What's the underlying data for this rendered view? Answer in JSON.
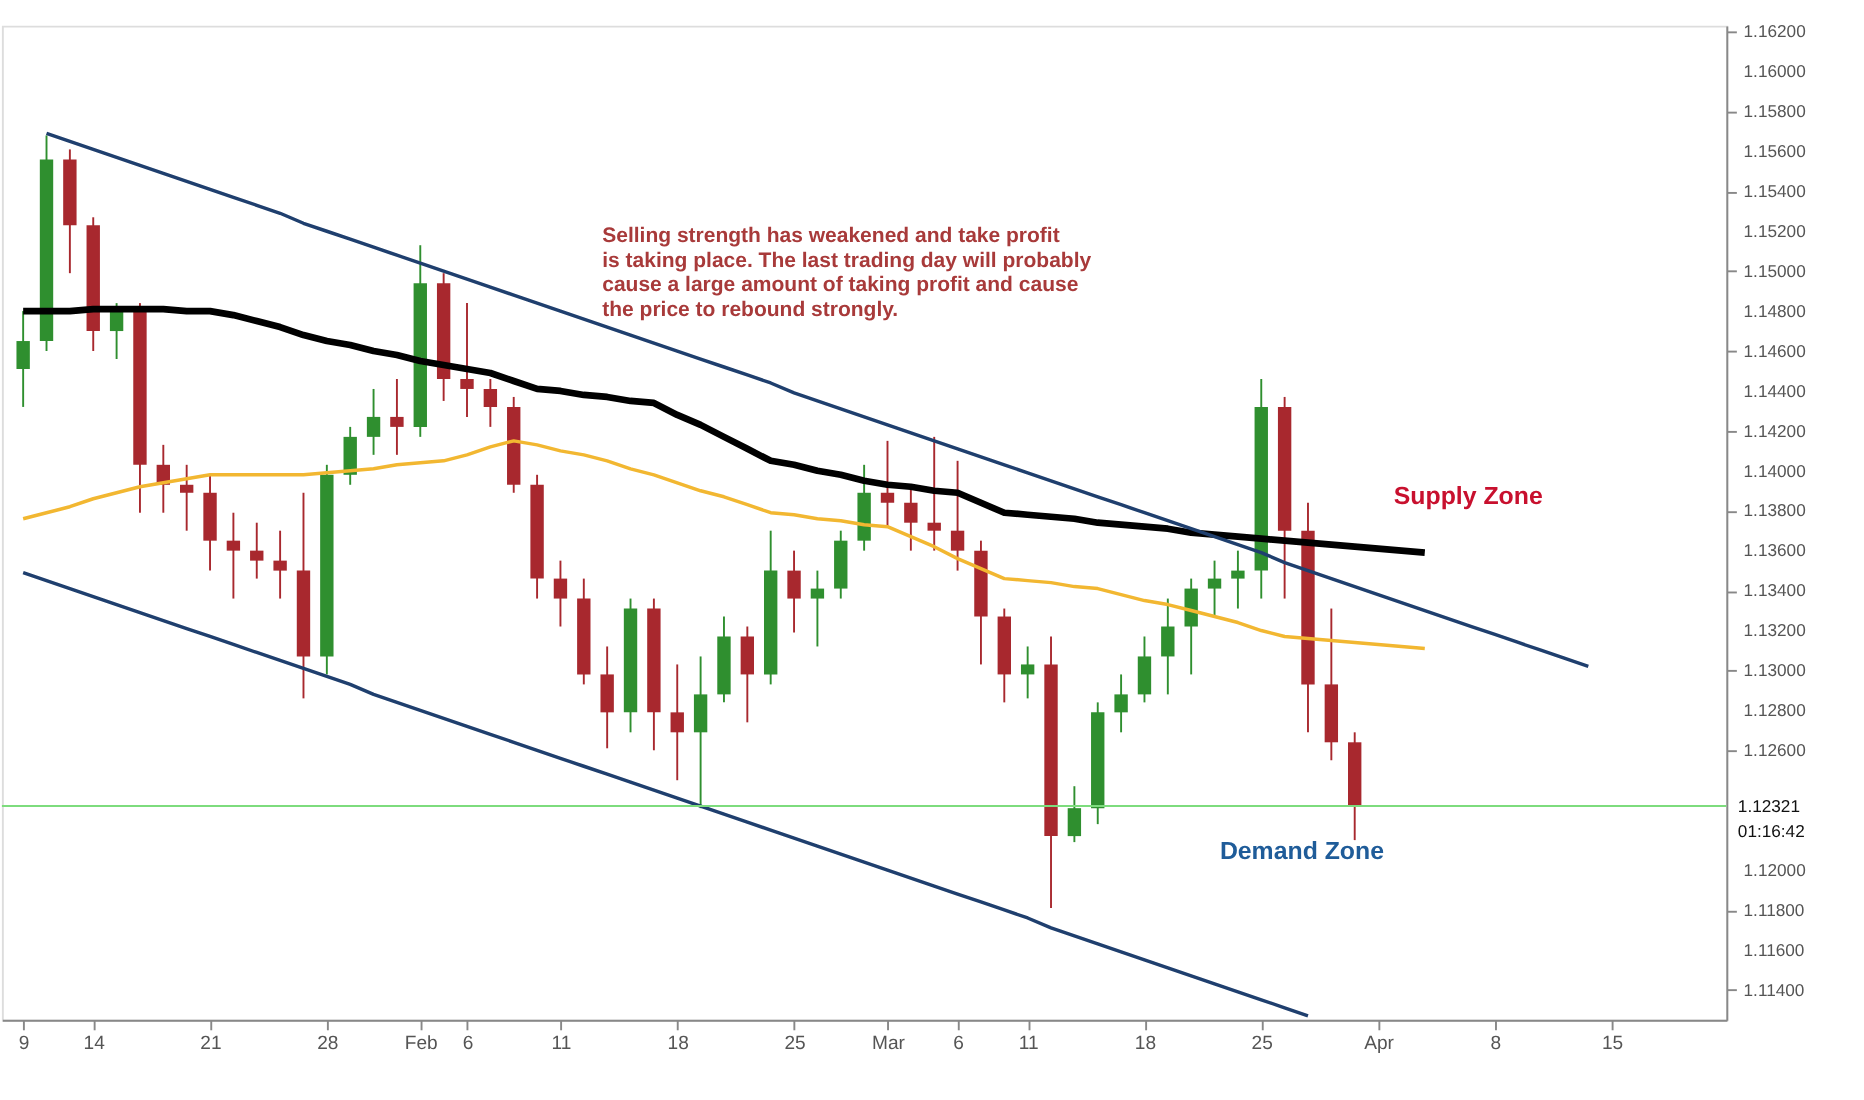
{
  "chart_data": {
    "type": "candlestick",
    "categories": [
      "9",
      null,
      null,
      "14",
      null,
      null,
      null,
      null,
      "21",
      null,
      null,
      null,
      null,
      "28",
      null,
      null,
      null,
      "Feb",
      null,
      "6",
      null,
      null,
      null,
      "11",
      null,
      null,
      null,
      null,
      "18",
      null,
      null,
      null,
      null,
      "25",
      null,
      null,
      null,
      "Mar",
      null,
      null,
      "6",
      null,
      null,
      "11",
      null,
      null,
      null,
      null,
      "18",
      null,
      null,
      null,
      null,
      "25",
      null,
      null,
      null,
      null,
      "Apr",
      null,
      null,
      null,
      null,
      "8",
      null,
      null,
      null,
      null,
      "15",
      null,
      null,
      null,
      null
    ],
    "ohlc": [
      [
        1.1451,
        1.148,
        1.1432,
        1.1465
      ],
      [
        1.1465,
        1.1568,
        1.146,
        1.1556
      ],
      [
        1.1556,
        1.1561,
        1.1499,
        1.1523
      ],
      [
        1.1523,
        1.1527,
        1.146,
        1.147
      ],
      [
        1.147,
        1.1484,
        1.1456,
        1.148
      ],
      [
        1.148,
        1.1484,
        1.1379,
        1.1403
      ],
      [
        1.1403,
        1.1413,
        1.1379,
        1.1393
      ],
      [
        1.1393,
        1.1403,
        1.137,
        1.1389
      ],
      [
        1.1389,
        1.1398,
        1.135,
        1.1365
      ],
      [
        1.1365,
        1.1379,
        1.1336,
        1.136
      ],
      [
        1.136,
        1.1374,
        1.1346,
        1.1355
      ],
      [
        1.1355,
        1.137,
        1.1336,
        1.135
      ],
      [
        1.135,
        1.1389,
        1.1286,
        1.1307
      ],
      [
        1.1307,
        1.1403,
        1.1298,
        1.1398
      ],
      [
        1.1398,
        1.1422,
        1.1393,
        1.1417
      ],
      [
        1.1417,
        1.1441,
        1.1408,
        1.1427
      ],
      [
        1.1427,
        1.1446,
        1.1408,
        1.1422
      ],
      [
        1.1422,
        1.1513,
        1.1417,
        1.1494
      ],
      [
        1.1494,
        1.1499,
        1.1435,
        1.1446
      ],
      [
        1.1446,
        1.1484,
        1.1427,
        1.1441
      ],
      [
        1.1441,
        1.1446,
        1.1422,
        1.1432
      ],
      [
        1.1432,
        1.1437,
        1.1389,
        1.1393
      ],
      [
        1.1393,
        1.1398,
        1.1336,
        1.1346
      ],
      [
        1.1346,
        1.1355,
        1.1322,
        1.1336
      ],
      [
        1.1336,
        1.1346,
        1.1293,
        1.1298
      ],
      [
        1.1298,
        1.1312,
        1.1261,
        1.1279
      ],
      [
        1.1279,
        1.1336,
        1.1269,
        1.1331
      ],
      [
        1.1331,
        1.1336,
        1.126,
        1.1279
      ],
      [
        1.1279,
        1.1303,
        1.1245,
        1.1269
      ],
      [
        1.1269,
        1.1307,
        1.1231,
        1.1288
      ],
      [
        1.1288,
        1.1327,
        1.1284,
        1.1317
      ],
      [
        1.1317,
        1.1322,
        1.1274,
        1.1298
      ],
      [
        1.1298,
        1.137,
        1.1293,
        1.135
      ],
      [
        1.135,
        1.136,
        1.1319,
        1.1336
      ],
      [
        1.1336,
        1.135,
        1.1312,
        1.1341
      ],
      [
        1.1341,
        1.137,
        1.1336,
        1.1365
      ],
      [
        1.1365,
        1.1403,
        1.136,
        1.1389
      ],
      [
        1.1389,
        1.1415,
        1.1372,
        1.1384
      ],
      [
        1.1384,
        1.1393,
        1.136,
        1.1374
      ],
      [
        1.1374,
        1.1417,
        1.136,
        1.137
      ],
      [
        1.137,
        1.1405,
        1.135,
        1.136
      ],
      [
        1.136,
        1.1365,
        1.1303,
        1.1327
      ],
      [
        1.1327,
        1.1331,
        1.1284,
        1.1298
      ],
      [
        1.1298,
        1.1312,
        1.1286,
        1.1303
      ],
      [
        1.1303,
        1.1317,
        1.1181,
        1.1217
      ],
      [
        1.1217,
        1.1242,
        1.1214,
        1.1231
      ],
      [
        1.1231,
        1.1284,
        1.1223,
        1.1279
      ],
      [
        1.1279,
        1.1298,
        1.1269,
        1.1288
      ],
      [
        1.1288,
        1.1317,
        1.1284,
        1.1307
      ],
      [
        1.1307,
        1.1336,
        1.1288,
        1.1322
      ],
      [
        1.1322,
        1.1346,
        1.1298,
        1.1341
      ],
      [
        1.1341,
        1.1355,
        1.1327,
        1.1346
      ],
      [
        1.1346,
        1.136,
        1.1331,
        1.135
      ],
      [
        1.135,
        1.1446,
        1.1336,
        1.1432
      ],
      [
        1.1432,
        1.1437,
        1.1336,
        1.137
      ],
      [
        1.137,
        1.1384,
        1.1269,
        1.1293
      ],
      [
        1.1293,
        1.1331,
        1.1255,
        1.1264
      ],
      [
        1.1264,
        1.1269,
        1.1215,
        1.12321
      ],
      null,
      null,
      null,
      null,
      null,
      null,
      null,
      null,
      null,
      null,
      null,
      null,
      null,
      null,
      null
    ],
    "series": [
      {
        "type": "line",
        "color": "#000000",
        "values": [
          1.148,
          1.148,
          1.148,
          1.1481,
          1.1481,
          1.1481,
          1.1481,
          1.148,
          1.148,
          1.1478,
          1.1475,
          1.1472,
          1.1468,
          1.1465,
          1.1463,
          1.146,
          1.1458,
          1.1455,
          1.1453,
          1.1451,
          1.1449,
          1.1445,
          1.1441,
          1.144,
          1.1438,
          1.1437,
          1.1435,
          1.1434,
          1.1428,
          1.1423,
          1.1417,
          1.1411,
          1.1405,
          1.1403,
          1.14,
          1.1398,
          1.1395,
          1.1393,
          1.1392,
          1.139,
          1.1389,
          1.1384,
          1.1379,
          1.1378,
          1.1377,
          1.1376,
          1.1374,
          1.1373,
          1.1372,
          1.1371,
          1.1369,
          1.1368,
          1.1367,
          1.1366,
          1.1365,
          1.1364,
          1.1363,
          1.1362,
          1.1361,
          1.136,
          1.1359,
          null,
          null,
          null,
          null,
          null,
          null,
          null,
          null,
          null,
          null,
          null,
          null
        ]
      },
      {
        "type": "line",
        "color": "#f2b731",
        "values": [
          1.1376,
          1.1379,
          1.1382,
          1.1386,
          1.1389,
          1.1392,
          1.1394,
          1.1396,
          1.1398,
          1.1398,
          1.1398,
          1.1398,
          1.1398,
          1.1399,
          1.14,
          1.1401,
          1.1403,
          1.1404,
          1.1405,
          1.1408,
          1.1412,
          1.1415,
          1.1413,
          1.141,
          1.1408,
          1.1405,
          1.1401,
          1.1398,
          1.1394,
          1.139,
          1.1387,
          1.1383,
          1.1379,
          1.1378,
          1.1376,
          1.1375,
          1.1373,
          1.1372,
          1.1367,
          1.1362,
          1.1356,
          1.1351,
          1.1346,
          1.1345,
          1.1344,
          1.1342,
          1.1341,
          1.1338,
          1.1335,
          1.1333,
          1.133,
          1.1327,
          1.1324,
          1.132,
          1.1317,
          1.1316,
          1.1315,
          1.1314,
          1.1313,
          1.1312,
          1.1311,
          null,
          null,
          null,
          null,
          null,
          null,
          null,
          null,
          null,
          null,
          null,
          null
        ]
      },
      {
        "type": "line",
        "color": "#1f3f6e",
        "values": [
          null,
          1.1569,
          1.1565,
          1.1561,
          1.1557,
          1.1553,
          1.1549,
          1.1545,
          1.1541,
          1.1537,
          1.1533,
          1.1529,
          1.1524,
          1.152,
          1.1516,
          1.1512,
          1.1508,
          1.1504,
          1.15,
          1.1496,
          1.1492,
          1.1488,
          1.1484,
          1.148,
          1.1476,
          1.1472,
          1.1468,
          1.1464,
          1.146,
          1.1456,
          1.1452,
          1.1448,
          1.1444,
          1.1439,
          1.1435,
          1.1431,
          1.1427,
          1.1423,
          1.1419,
          1.1415,
          1.1411,
          1.1407,
          1.1403,
          1.1399,
          1.1395,
          1.1391,
          1.1387,
          1.1383,
          1.1379,
          1.1375,
          1.1371,
          1.1367,
          1.1363,
          1.1359,
          1.1354,
          1.135,
          1.1346,
          1.1342,
          1.1338,
          1.1334,
          1.133,
          1.1326,
          1.1322,
          1.1318,
          1.1314,
          1.131,
          1.1306,
          1.1302,
          null,
          null,
          null,
          null,
          null
        ]
      },
      {
        "type": "line",
        "color": "#1f3f6e",
        "values": [
          1.1349,
          1.1345,
          1.1341,
          1.1337,
          1.1333,
          1.1329,
          1.1325,
          1.1321,
          1.1317,
          1.1313,
          1.1309,
          1.1305,
          1.1301,
          1.1297,
          1.1293,
          1.1288,
          1.1284,
          1.128,
          1.1276,
          1.1272,
          1.1268,
          1.1264,
          1.126,
          1.1256,
          1.1252,
          1.1248,
          1.1244,
          1.124,
          1.1236,
          1.1232,
          1.1228,
          1.1224,
          1.122,
          1.1216,
          1.1212,
          1.1208,
          1.1204,
          1.12,
          1.1196,
          1.1192,
          1.1188,
          1.1184,
          1.118,
          1.1176,
          1.1171,
          1.1167,
          1.1163,
          1.1159,
          1.1155,
          1.1151,
          1.1147,
          1.1143,
          1.1139,
          1.1135,
          1.1131,
          1.1127,
          null,
          null,
          null,
          null,
          null,
          null,
          null,
          null,
          null,
          null,
          null,
          null,
          null,
          null,
          null,
          null,
          null
        ]
      }
    ],
    "ylim": [
      1.1125,
      1.1623
    ],
    "yticks": [
      {
        "value": 1.114,
        "label": "1.11400"
      },
      {
        "value": 1.116,
        "label": "1.11600"
      },
      {
        "value": 1.118,
        "label": "1.11800"
      },
      {
        "value": 1.12,
        "label": "1.12000"
      },
      {
        "value": 1.126,
        "label": "1.12600"
      },
      {
        "value": 1.128,
        "label": "1.12800"
      },
      {
        "value": 1.13,
        "label": "1.13000"
      },
      {
        "value": 1.132,
        "label": "1.13200"
      },
      {
        "value": 1.134,
        "label": "1.13400"
      },
      {
        "value": 1.136,
        "label": "1.13600"
      },
      {
        "value": 1.138,
        "label": "1.13800"
      },
      {
        "value": 1.14,
        "label": "1.14000"
      },
      {
        "value": 1.142,
        "label": "1.14200"
      },
      {
        "value": 1.144,
        "label": "1.14400"
      },
      {
        "value": 1.146,
        "label": "1.14600"
      },
      {
        "value": 1.148,
        "label": "1.14800"
      },
      {
        "value": 1.15,
        "label": "1.15000"
      },
      {
        "value": 1.152,
        "label": "1.15200"
      },
      {
        "value": 1.154,
        "label": "1.15400"
      },
      {
        "value": 1.156,
        "label": "1.15600"
      },
      {
        "value": 1.158,
        "label": "1.15800"
      },
      {
        "value": 1.16,
        "label": "1.16000"
      },
      {
        "value": 1.162,
        "label": "1.16200"
      }
    ],
    "ref_lines": [
      {
        "axis": "y",
        "value": 1.12321,
        "label": "1.12321",
        "color": "#7ddc7d"
      }
    ],
    "annotations": [
      "Selling strength has weakened and take profit\nis taking place. The last trading day will probably\ncause a large amount of taking profit and cause\nthe price to rebound strongly.",
      "Supply Zone",
      "Demand Zone",
      "01:16:42"
    ],
    "grid": false
  }
}
